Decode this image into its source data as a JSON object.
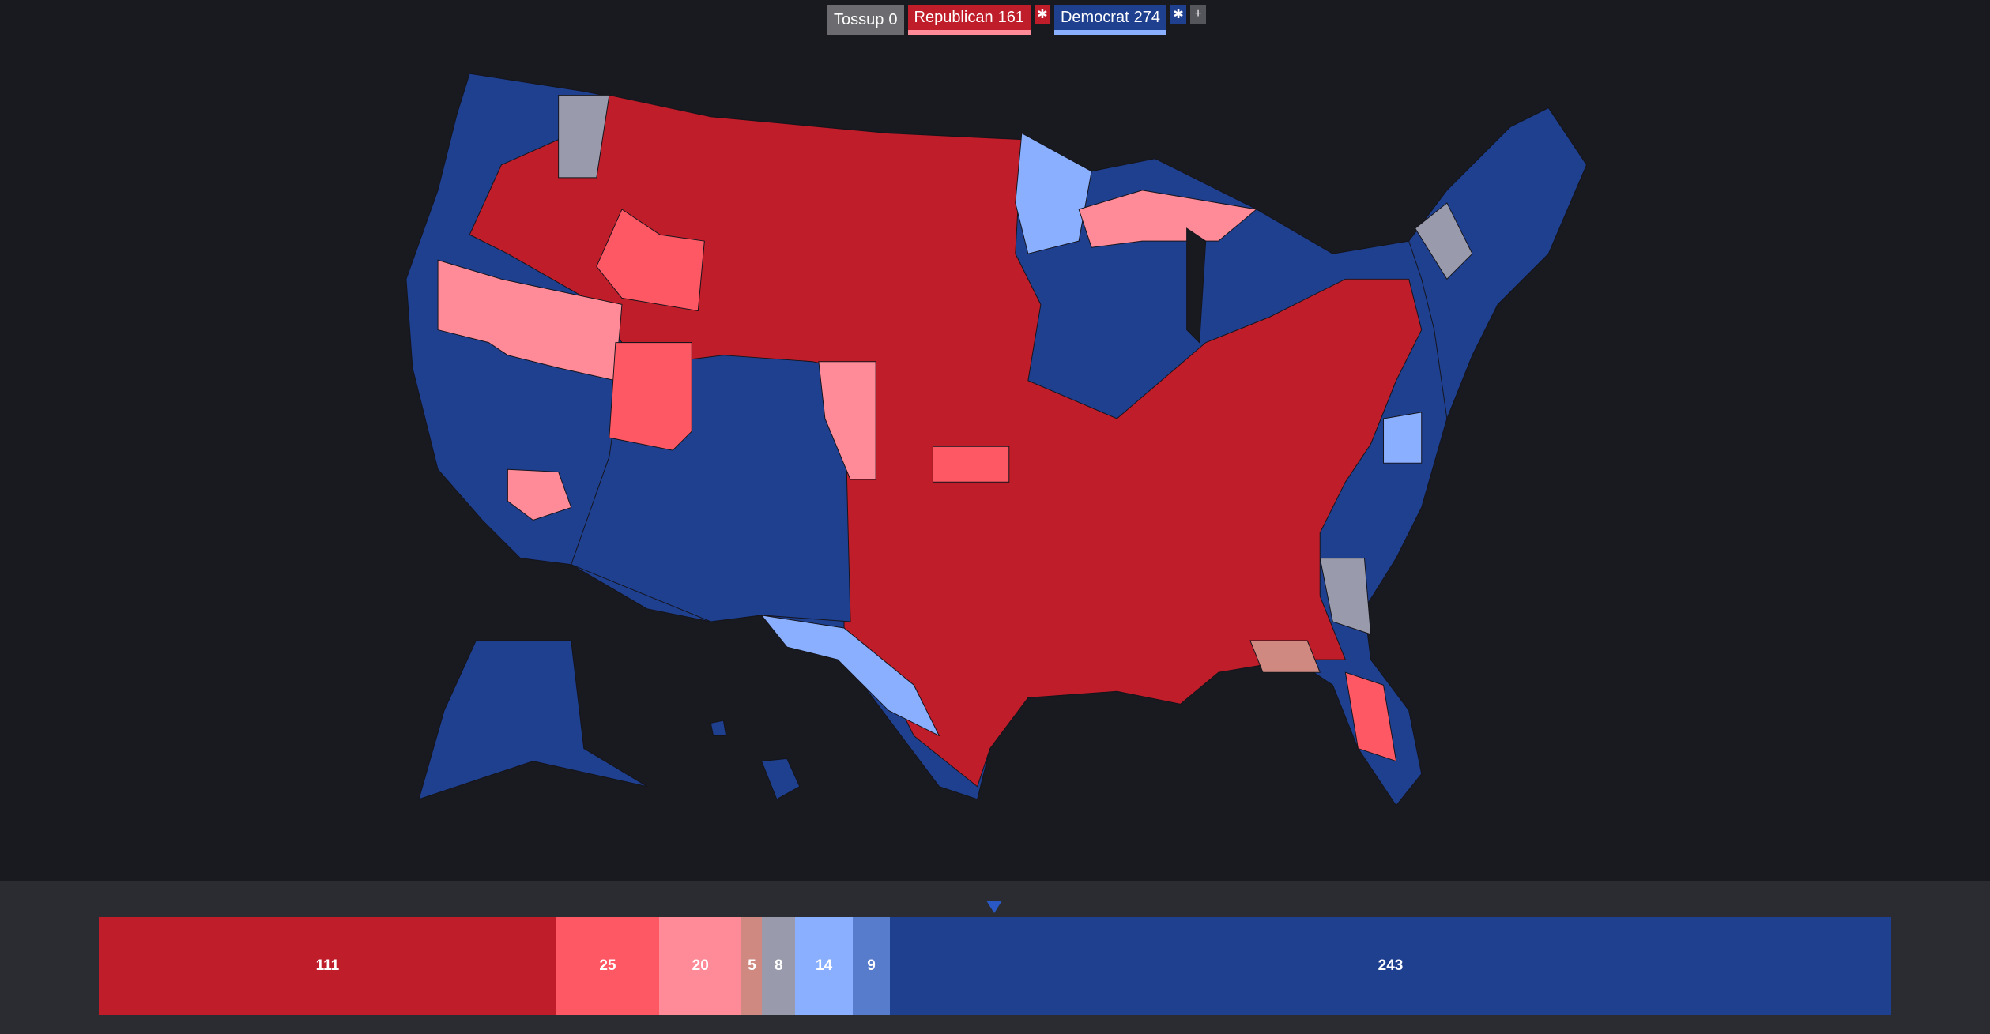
{
  "header": {
    "tossup": {
      "label": "Tossup",
      "count": 0
    },
    "republican": {
      "label": "Republican",
      "count": 161
    },
    "democrat": {
      "label": "Democrat",
      "count": 274
    },
    "add_button": "+"
  },
  "summary_bar": {
    "segments": [
      {
        "value": 111,
        "color": "#bf1d2a"
      },
      {
        "value": 25,
        "color": "#ff5865"
      },
      {
        "value": 20,
        "color": "#ff8b98"
      },
      {
        "value": 5,
        "color": "#cf8980"
      },
      {
        "value": 8,
        "color": "#999aac"
      },
      {
        "value": 14,
        "color": "#8aafff"
      },
      {
        "value": 9,
        "color": "#577ccc"
      },
      {
        "value": 243,
        "color": "#1f3f8f"
      }
    ]
  }
}
